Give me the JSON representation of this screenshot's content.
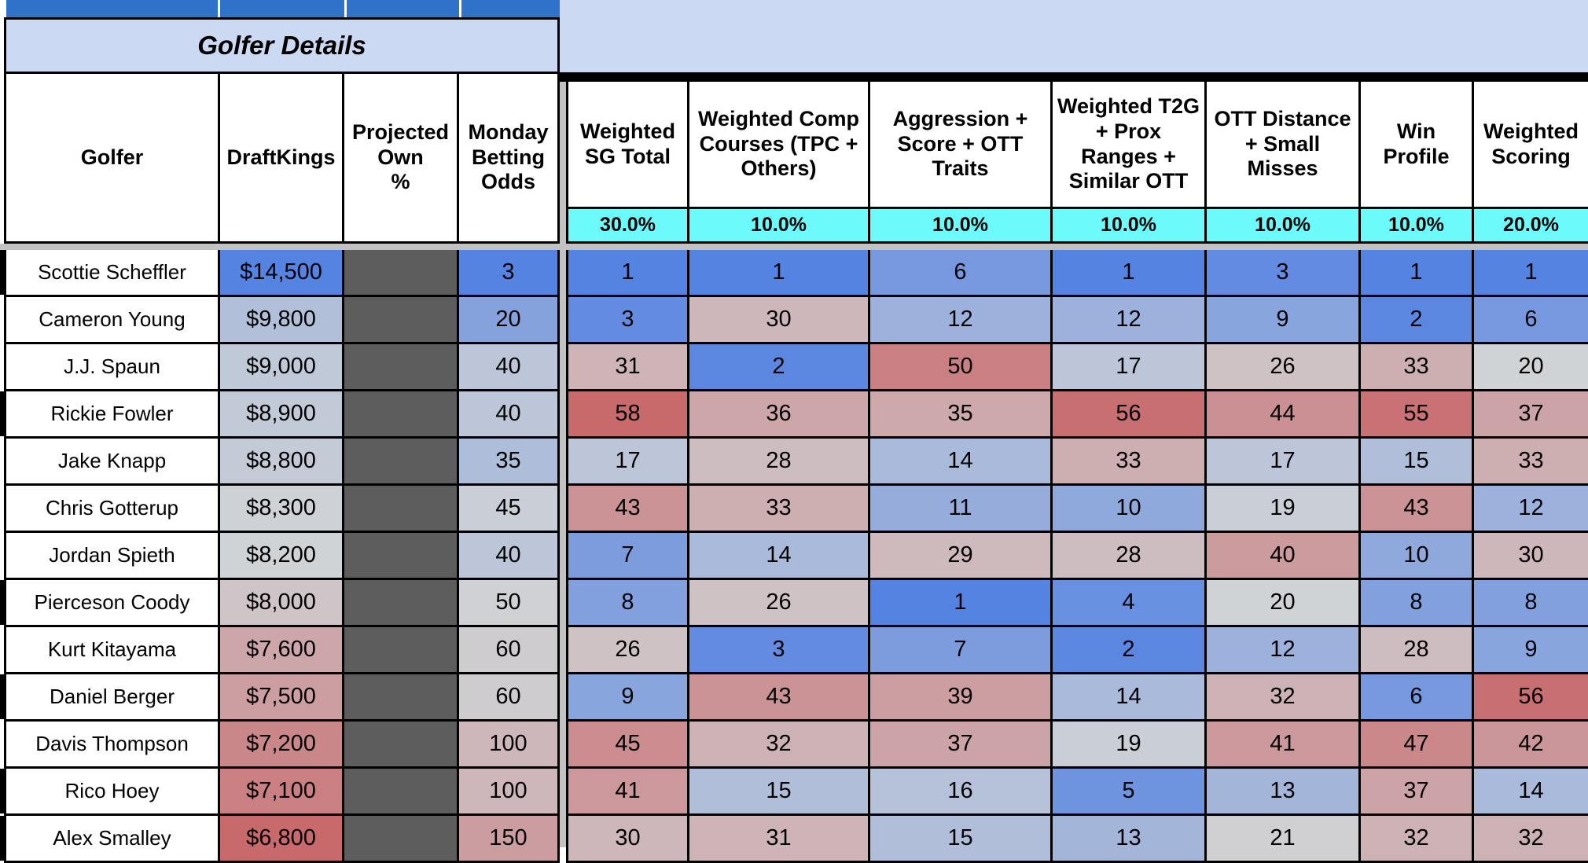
{
  "banner": {
    "title": "Golfer Details"
  },
  "left_headers": [
    "Golfer",
    "DraftKings",
    "Projected\nOwn\n%",
    "Monday\nBetting\nOdds"
  ],
  "right_headers": [
    "Weighted SG Total",
    "Weighted Comp Courses (TPC + Others)",
    "Aggression + Score + OTT Traits",
    "Weighted T2G + Prox Ranges + Similar OTT",
    "OTT Distance + Small Misses",
    "Win Profile",
    "Weighted Scoring"
  ],
  "weights_row": [
    "30.0%",
    "10.0%",
    "10.0%",
    "10.0%",
    "10.0%",
    "10.0%",
    "20.0%"
  ],
  "colors": {
    "top_bar_blue": "#2E72C9",
    "banner_fill": "#CCD9F3",
    "weights_fill": "#6CFAFA",
    "own_column_fill": "#5D5D5D",
    "pane_divider_gray": "#C2C2C2",
    "scale_blue": "#5583E2",
    "scale_mid": "#D0D3D6",
    "scale_red": "#C8696C"
  },
  "color_scales": {
    "salary": {
      "blue_at": 14500,
      "mid_at": 8200,
      "red_at": 6800
    },
    "odds": {
      "blue_at": 3,
      "mid_at": 47,
      "red_at": 250
    },
    "rank": {
      "blue_at": 1,
      "mid_at": 20,
      "red_at": 58
    }
  },
  "rows": [
    {
      "golfer": "Scottie Scheffler",
      "salary": "$14,500",
      "salary_value": 14500,
      "own_pct": "",
      "odds": 3,
      "ranks": [
        1,
        1,
        6,
        1,
        3,
        1,
        1
      ],
      "left_mark": true
    },
    {
      "golfer": "Cameron Young",
      "salary": "$9,800",
      "salary_value": 9800,
      "own_pct": "",
      "odds": 20,
      "ranks": [
        3,
        30,
        12,
        12,
        9,
        2,
        6
      ],
      "left_mark": false
    },
    {
      "golfer": "J.J. Spaun",
      "salary": "$9,000",
      "salary_value": 9000,
      "own_pct": "",
      "odds": 40,
      "ranks": [
        31,
        2,
        50,
        17,
        26,
        33,
        20
      ],
      "left_mark": false
    },
    {
      "golfer": "Rickie Fowler",
      "salary": "$8,900",
      "salary_value": 8900,
      "own_pct": "",
      "odds": 40,
      "ranks": [
        58,
        36,
        35,
        56,
        44,
        55,
        37
      ],
      "left_mark": true
    },
    {
      "golfer": "Jake Knapp",
      "salary": "$8,800",
      "salary_value": 8800,
      "own_pct": "",
      "odds": 35,
      "ranks": [
        17,
        28,
        14,
        33,
        17,
        15,
        33
      ],
      "left_mark": false
    },
    {
      "golfer": "Chris Gotterup",
      "salary": "$8,300",
      "salary_value": 8300,
      "own_pct": "",
      "odds": 45,
      "ranks": [
        43,
        33,
        11,
        10,
        19,
        43,
        12
      ],
      "left_mark": false
    },
    {
      "golfer": "Jordan Spieth",
      "salary": "$8,200",
      "salary_value": 8200,
      "own_pct": "",
      "odds": 40,
      "ranks": [
        7,
        14,
        29,
        28,
        40,
        10,
        30
      ],
      "left_mark": false
    },
    {
      "golfer": "Pierceson Coody",
      "salary": "$8,000",
      "salary_value": 8000,
      "own_pct": "",
      "odds": 50,
      "ranks": [
        8,
        26,
        1,
        4,
        20,
        8,
        8
      ],
      "left_mark": true
    },
    {
      "golfer": "Kurt Kitayama",
      "salary": "$7,600",
      "salary_value": 7600,
      "own_pct": "",
      "odds": 60,
      "ranks": [
        26,
        3,
        7,
        2,
        12,
        28,
        9
      ],
      "left_mark": false
    },
    {
      "golfer": "Daniel Berger",
      "salary": "$7,500",
      "salary_value": 7500,
      "own_pct": "",
      "odds": 60,
      "ranks": [
        9,
        43,
        39,
        14,
        32,
        6,
        56
      ],
      "left_mark": true
    },
    {
      "golfer": "Davis Thompson",
      "salary": "$7,200",
      "salary_value": 7200,
      "own_pct": "",
      "odds": 100,
      "ranks": [
        45,
        32,
        37,
        19,
        41,
        47,
        42
      ],
      "left_mark": false
    },
    {
      "golfer": "Rico Hoey",
      "salary": "$7,100",
      "salary_value": 7100,
      "own_pct": "",
      "odds": 100,
      "ranks": [
        41,
        15,
        16,
        5,
        13,
        37,
        14
      ],
      "left_mark": true
    },
    {
      "golfer": "Alex Smalley",
      "salary": "$6,800",
      "salary_value": 6800,
      "own_pct": "",
      "odds": 150,
      "ranks": [
        30,
        31,
        15,
        13,
        21,
        32,
        32
      ],
      "left_mark": true
    }
  ]
}
